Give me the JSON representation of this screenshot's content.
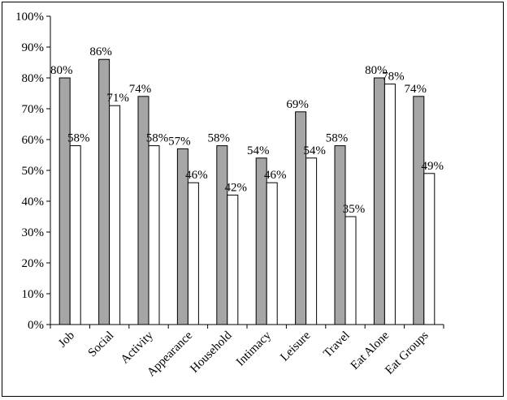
{
  "chart_data": {
    "type": "bar",
    "title": "",
    "xlabel": "",
    "ylabel": "",
    "ylim": [
      0,
      100
    ],
    "y_ticks": [
      "0%",
      "10%",
      "20%",
      "30%",
      "40%",
      "50%",
      "60%",
      "70%",
      "80%",
      "90%",
      "100%"
    ],
    "grid": false,
    "legend": "none",
    "categories": [
      "Job",
      "Social",
      "Activity",
      "Appearance",
      "Household",
      "Intimacy",
      "Leisure",
      "Travel",
      "Eat Alone",
      "Eat Groups"
    ],
    "series": [
      {
        "color": "#a6a6a6",
        "values": [
          80,
          86,
          74,
          57,
          58,
          54,
          69,
          58,
          80,
          74
        ],
        "labels": [
          "80%",
          "86%",
          "74%",
          "57%",
          "58%",
          "54%",
          "69%",
          "58%",
          "80%",
          "74%"
        ]
      },
      {
        "color": "#ffffff",
        "values": [
          58,
          71,
          58,
          46,
          42,
          46,
          54,
          35,
          78,
          49
        ],
        "labels": [
          "58%",
          "71%",
          "58%",
          "46%",
          "42%",
          "46%",
          "54%",
          "35%",
          "78%",
          "49%"
        ]
      }
    ]
  }
}
